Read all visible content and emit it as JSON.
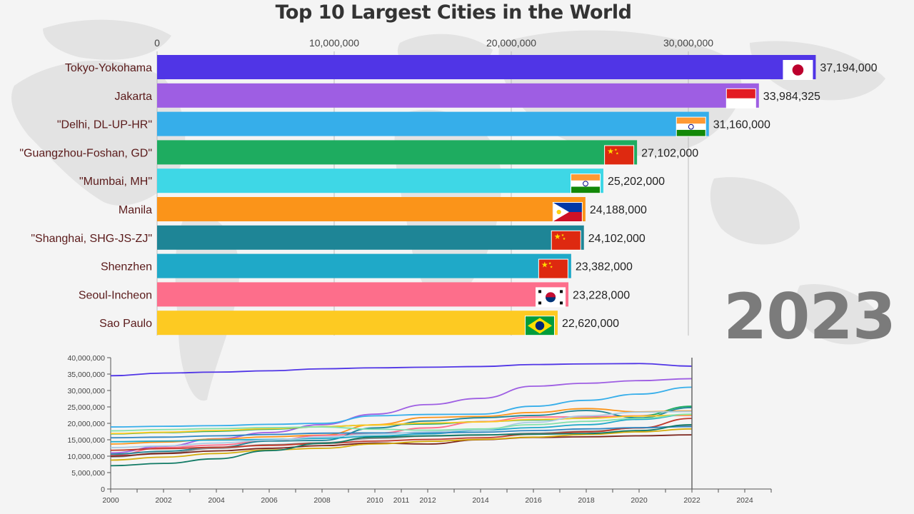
{
  "title": "Top 10 Largest Cities in the World",
  "year": "2023",
  "colors": {
    "background": "#f4f4f4",
    "map": "#e2e2e2",
    "axis": "#555555",
    "gridline": "#bbbbbb"
  },
  "chart_data": [
    {
      "type": "bar",
      "orientation": "horizontal",
      "title": "Top 10 Largest Cities in the World",
      "xlim": [
        0,
        37194000
      ],
      "x_ticks": [
        0,
        10000000,
        20000000,
        30000000
      ],
      "x_tick_labels": [
        "0",
        "10,000,000",
        "20,000,000",
        "30,000,000"
      ],
      "grid": true,
      "categories": [
        "Tokyo-Yokohama",
        "Jakarta",
        "\"Delhi, DL-UP-HR\"",
        "\"Guangzhou-Foshan, GD\"",
        "\"Mumbai, MH\"",
        "Manila",
        "\"Shanghai, SHG-JS-ZJ\"",
        "Shenzhen",
        "Seoul-Incheon",
        "Sao Paulo"
      ],
      "values": [
        37194000,
        33984325,
        31160000,
        27102000,
        25202000,
        24188000,
        24102000,
        23382000,
        23228000,
        22620000
      ],
      "value_labels": [
        "37,194,000",
        "33,984,325",
        "31,160,000",
        "27,102,000",
        "25,202,000",
        "24,188,000",
        "24,102,000",
        "23,382,000",
        "23,228,000",
        "22,620,000"
      ],
      "bar_colors": [
        "#5035e6",
        "#9e5ee3",
        "#36aeea",
        "#1eac60",
        "#3ed7e6",
        "#fb9419",
        "#1e8596",
        "#1fa9c8",
        "#fd6e8b",
        "#fdca22"
      ],
      "flags": [
        "japan",
        "indonesia",
        "india",
        "china",
        "india",
        "philippines",
        "china",
        "china",
        "south-korea",
        "brazil"
      ]
    },
    {
      "type": "line",
      "xlim": [
        2000,
        2025
      ],
      "ylim": [
        0,
        40000000
      ],
      "x_ticks": [
        2000,
        2002,
        2004,
        2006,
        2008,
        2010,
        2011,
        2012,
        2014,
        2016,
        2018,
        2020,
        2022,
        2024
      ],
      "y_ticks": [
        0,
        5000000,
        10000000,
        15000000,
        20000000,
        25000000,
        30000000,
        35000000,
        40000000
      ],
      "y_tick_labels": [
        "0",
        "5,000,000",
        "10,000,000",
        "15,000,000",
        "20,000,000",
        "25,000,000",
        "30,000,000",
        "35,000,000",
        "40,000,000"
      ],
      "current_year": 2022,
      "years": [
        2000,
        2002,
        2004,
        2006,
        2008,
        2010,
        2012,
        2014,
        2016,
        2018,
        2020,
        2022
      ],
      "series": [
        {
          "color": "#5035e6",
          "values": [
            34500000,
            35300000,
            35600000,
            36000000,
            36600000,
            36900000,
            37100000,
            37300000,
            37900000,
            38100000,
            38200000,
            37400000
          ]
        },
        {
          "color": "#9e5ee3",
          "values": [
            11000000,
            13000000,
            15300000,
            17200000,
            19600000,
            22800000,
            25700000,
            27600000,
            31300000,
            32200000,
            33000000,
            33600000
          ]
        },
        {
          "color": "#36aeea",
          "values": [
            18900000,
            19100000,
            19300000,
            19700000,
            20000000,
            22300000,
            22700000,
            22800000,
            25200000,
            27000000,
            28900000,
            31000000
          ]
        },
        {
          "color": "#1eac60",
          "values": [
            16800000,
            17200000,
            17600000,
            18200000,
            19000000,
            19500000,
            19800000,
            20500000,
            21000000,
            21600000,
            22300000,
            25200000
          ]
        },
        {
          "color": "#fb9419",
          "values": [
            13700000,
            14300000,
            15200000,
            15900000,
            16400000,
            19600000,
            21800000,
            22100000,
            23300000,
            24500000,
            23500000,
            23800000
          ]
        },
        {
          "color": "#fd6e8b",
          "values": [
            10200000,
            12600000,
            13400000,
            14700000,
            16300000,
            17000000,
            18600000,
            20500000,
            21900000,
            22000000,
            22300000,
            22400000
          ]
        },
        {
          "color": "#1e8596",
          "values": [
            10600000,
            11500000,
            12700000,
            14600000,
            14800000,
            18600000,
            20700000,
            21700000,
            22400000,
            23900000,
            21700000,
            24800000
          ]
        },
        {
          "color": "#1fa9c8",
          "values": [
            14400000,
            14600000,
            14900000,
            15100000,
            15400000,
            16100000,
            16800000,
            17900000,
            18700000,
            19600000,
            21200000,
            22700000
          ]
        },
        {
          "color": "#fdca22",
          "values": [
            16900000,
            17300000,
            17800000,
            18400000,
            19000000,
            19500000,
            20100000,
            20400000,
            21200000,
            21500000,
            22200000,
            22600000
          ]
        },
        {
          "color": "#8c8c8c",
          "values": [
            9800000,
            11000000,
            12400000,
            13500000,
            14100000,
            15400000,
            16100000,
            16400000,
            17000000,
            17600000,
            18600000,
            19200000
          ]
        },
        {
          "color": "#c0392b",
          "values": [
            11800000,
            12300000,
            12700000,
            13300000,
            13900000,
            14600000,
            15100000,
            15600000,
            16700000,
            17400000,
            18600000,
            21500000
          ]
        },
        {
          "color": "#7b241c",
          "values": [
            10000000,
            10800000,
            11600000,
            12400000,
            13200000,
            14000000,
            13700000,
            15000000,
            15700000,
            15900000,
            16200000,
            16500000
          ]
        },
        {
          "color": "#2e86c1",
          "values": [
            15600000,
            15800000,
            16200000,
            16600000,
            17000000,
            17100000,
            17100000,
            17300000,
            17800000,
            18300000,
            18700000,
            19000000
          ]
        },
        {
          "color": "#a9cce3",
          "values": [
            12600000,
            13100000,
            14000000,
            14900000,
            15800000,
            16700000,
            17400000,
            18000000,
            20300000,
            22300000,
            23400000,
            23600000
          ]
        },
        {
          "color": "#82e0aa",
          "values": [
            17700000,
            18100000,
            18400000,
            18700000,
            18900000,
            18200000,
            17900000,
            18300000,
            19600000,
            20600000,
            21500000,
            22800000
          ]
        },
        {
          "color": "#d4ac0d",
          "values": [
            8800000,
            9700000,
            10800000,
            11900000,
            12400000,
            13700000,
            14500000,
            15100000,
            15800000,
            16600000,
            17400000,
            18300000
          ]
        },
        {
          "color": "#117a65",
          "values": [
            7100000,
            7800000,
            9200000,
            11700000,
            13900000,
            15800000,
            16200000,
            16500000,
            16700000,
            16900000,
            17800000,
            19600000
          ]
        }
      ]
    }
  ]
}
